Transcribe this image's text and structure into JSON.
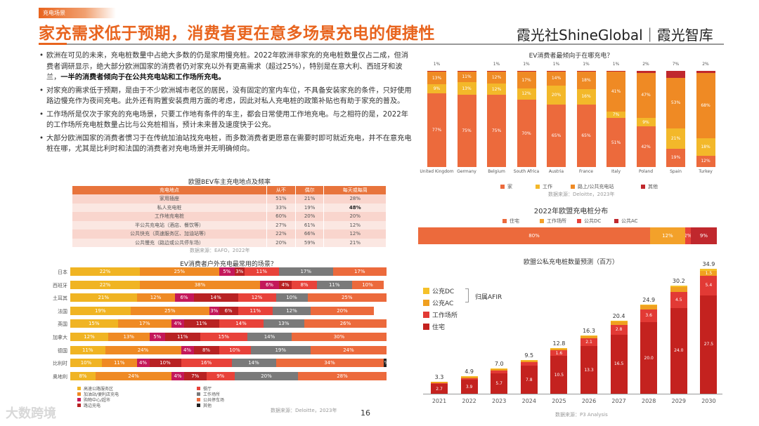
{
  "header": {
    "tag": "充电场景",
    "title": "家充需求低于预期，消费者更在意多场景充电的便捷性",
    "logo": "霞光社ShineGlobal｜霞光智库"
  },
  "bullets": [
    {
      "text": "欧洲在可见的未来，充电桩数量中占绝大多数的仍是家用慢充桩。2022年欧洲非家充的充电桩数量仅占二成，但消费者调研显示，绝大部分欧洲国家的消费者仍对家充以外有更高需求（超过25%），特别是在意大利、西班牙和波兰，",
      "bold": "一半的消费者倾向于在公共充电站和工作场所充电。"
    },
    {
      "text": "对家充的需求低于预期，是由于不少欧洲城市老区的居民，没有固定的室内车位，不具备安装家充的条件，只好使用路边慢充作为夜间充电。此外还有购置安装费用方面的考虑，因此对私人充电桩的政策补贴也有助于家充的普及。",
      "bold": ""
    },
    {
      "text": "工作场所是仅次于家充的充电场景，只要工作地有条件的车主，都会日常使用工作地充电。与之相符的是，2022年的工作场所充电桩数量占比与公充桩相当，预计未来普及速度快于公充。",
      "bold": ""
    },
    {
      "text": "大部分欧洲国家的消费者惯习于在传统加油站找充电桩，而多数消费者更愿意在需要时即可就近充电，并不在意充电桩在哪，尤其是比利时和法国的消费者对充电场景并无明确倾向。",
      "bold": ""
    }
  ],
  "table": {
    "title": "欧盟BEV车主充电地点及频率",
    "headers": [
      "充电地点",
      "从不",
      "偶尔",
      "每天或每周"
    ],
    "rows": [
      [
        "家用插座",
        "51%",
        "21%",
        "28%"
      ],
      [
        "私人充电桩",
        "33%",
        "19%",
        "48%"
      ],
      [
        "工作地充电桩",
        "60%",
        "20%",
        "20%"
      ],
      [
        "半公共充电站（酒店、餐饮等）",
        "27%",
        "61%",
        "12%"
      ],
      [
        "公共快充（高速服务区、加油站等）",
        "22%",
        "66%",
        "12%"
      ],
      [
        "公共慢充（路边或公共停车场）",
        "20%",
        "59%",
        "21%"
      ]
    ],
    "source": "数据来源：EAFO，2022年"
  },
  "page_number": "16",
  "watermark": "大数跨境",
  "chart_data": [
    {
      "type": "bar",
      "stacked": true,
      "title": "EV消费者最倾向于在哪充电？",
      "categories": [
        "United Kingdom",
        "Germany",
        "Belgium",
        "South Africa",
        "Austria",
        "France",
        "Italy",
        "Poland",
        "Spain",
        "Turkey"
      ],
      "series": [
        {
          "name": "家",
          "color": "#ec6a3c",
          "values": [
            77,
            75,
            75,
            70,
            65,
            65,
            51,
            42,
            19,
            12
          ]
        },
        {
          "name": "工作",
          "color": "#f3b82a",
          "values": [
            9,
            13,
            12,
            12,
            20,
            16,
            7,
            9,
            21,
            18
          ]
        },
        {
          "name": "路上/公共充电站",
          "color": "#ef8a24",
          "values": [
            13,
            11,
            12,
            17,
            14,
            18,
            41,
            47,
            53,
            68
          ]
        },
        {
          "name": "其他",
          "color": "#c0282d",
          "values": [
            1,
            1,
            1,
            1,
            1,
            1,
            1,
            2,
            7,
            2
          ]
        }
      ],
      "top_labels": [
        "1%",
        "",
        "1%",
        "1%",
        "1%",
        "1%",
        "1%",
        "2%",
        "7%",
        "2%"
      ],
      "source": "数据来源：Deloitte，2023年"
    },
    {
      "type": "bar",
      "stacked": true,
      "orientation": "horizontal",
      "title": "2022年欧盟充电桩分布",
      "categories": [
        "2022"
      ],
      "series": [
        {
          "name": "住宅",
          "color": "#ec6a3c",
          "values": [
            80
          ]
        },
        {
          "name": "工作场所",
          "color": "#f3a12a",
          "values": [
            12
          ]
        },
        {
          "name": "公共DC",
          "color": "#e8423a",
          "values": [
            2
          ]
        },
        {
          "name": "公共AC",
          "color": "#c0282d",
          "values": [
            9
          ]
        }
      ]
    },
    {
      "type": "bar",
      "stacked": true,
      "title": "欧盟公私充电桩数量预测（百万）",
      "categories": [
        "2021",
        "2022",
        "2023",
        "2024",
        "2025",
        "2026",
        "2027",
        "2028",
        "2029",
        "2030"
      ],
      "series": [
        {
          "name": "住宅",
          "color": "#c4221f",
          "values": [
            2.7,
            3.9,
            5.7,
            7.8,
            10.5,
            13.3,
            16.5,
            20.0,
            24.0,
            27.5
          ]
        },
        {
          "name": "工作场所",
          "color": "#e23a35",
          "values": [
            0.3,
            0.5,
            0.8,
            1.1,
            1.6,
            2.1,
            2.8,
            3.6,
            4.5,
            5.4
          ]
        },
        {
          "name": "公充AC",
          "color": "#f0a020",
          "values": [
            0.3,
            0.4,
            0.5,
            0.5,
            0.6,
            0.7,
            0.9,
            1.1,
            1.3,
            1.5
          ]
        },
        {
          "name": "公充DC",
          "color": "#f5c12a",
          "values": [
            0.0,
            0.1,
            0.1,
            0.1,
            0.1,
            0.2,
            0.2,
            0.3,
            0.4,
            0.5
          ]
        }
      ],
      "totals": [
        "3.3",
        "4.9",
        "7.0",
        "9.5",
        "12.8",
        "16.3",
        "20.4",
        "24.9",
        "30.2",
        "34.9"
      ],
      "bracket_label": "归属AFIR",
      "source": "数据来源：P3 Analysis"
    },
    {
      "type": "bar",
      "stacked": true,
      "orientation": "horizontal",
      "title": "EV消费者户外充电最常用的场景？",
      "categories": [
        "日本",
        "西班牙",
        "土耳其",
        "法国",
        "英国",
        "加拿大",
        "德国",
        "比利时",
        "奥地利"
      ],
      "series": [
        {
          "name": "高速公路服务区",
          "color": "#f0b423",
          "values": [
            22,
            22,
            21,
            19,
            15,
            12,
            11,
            10,
            8
          ]
        },
        {
          "name": "加油站/便利店充电",
          "color": "#ef8a24",
          "values": [
            25,
            38,
            12,
            25,
            17,
            13,
            24,
            11,
            24
          ]
        },
        {
          "name": "购物中心/超市",
          "color": "#c4185a",
          "values": [
            5,
            6,
            6,
            3,
            4,
            5,
            4,
            4,
            4
          ]
        },
        {
          "name": "路边充电",
          "color": "#b82223",
          "values": [
            3,
            4,
            14,
            6,
            11,
            11,
            8,
            10,
            7
          ]
        },
        {
          "name": "餐厅",
          "color": "#e8423a",
          "values": [
            11,
            8,
            12,
            11,
            14,
            15,
            10,
            16,
            9
          ]
        },
        {
          "name": "工作场所",
          "color": "#7a7a7a",
          "values": [
            17,
            11,
            10,
            12,
            13,
            14,
            19,
            14,
            20
          ]
        },
        {
          "name": "公共停车场",
          "color": "#ec6a3c",
          "values": [
            17,
            10,
            25,
            20,
            26,
            30,
            24,
            34,
            28
          ]
        },
        {
          "name": "其他",
          "color": "#222222",
          "values": [
            0,
            0,
            0,
            0,
            0,
            0,
            0,
            1,
            0
          ]
        }
      ],
      "source": "数据来源：Deloitte，2023年"
    }
  ]
}
